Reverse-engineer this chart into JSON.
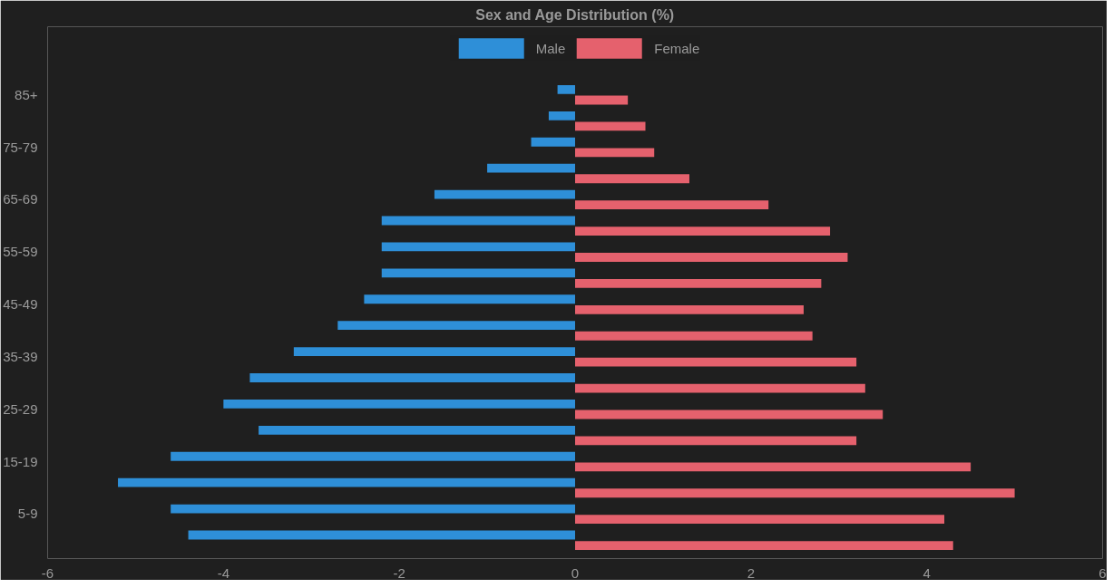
{
  "chart_data": {
    "type": "bar",
    "orientation": "horizontal",
    "title": "Sex and Age Distribution (%)",
    "categories": [
      "85+",
      null,
      "75-79",
      null,
      "65-69",
      null,
      "55-59",
      null,
      "45-49",
      null,
      "35-39",
      null,
      "25-29",
      null,
      "15-19",
      null,
      "5-9",
      null
    ],
    "series": [
      {
        "name": "Male",
        "color": "#2e8fd8",
        "values": [
          -0.2,
          -0.3,
          -0.5,
          -1.0,
          -1.6,
          -2.2,
          -2.2,
          -2.2,
          -2.4,
          -2.7,
          -3.2,
          -3.7,
          -4.0,
          -3.6,
          -4.6,
          -5.2,
          -4.6,
          -4.4
        ]
      },
      {
        "name": "Female",
        "color": "#e5616d",
        "values": [
          0.6,
          0.8,
          0.9,
          1.3,
          2.2,
          2.9,
          3.1,
          2.8,
          2.6,
          2.7,
          3.2,
          3.3,
          3.5,
          3.2,
          4.5,
          5.0,
          4.2,
          4.3
        ]
      }
    ],
    "xlim": [
      -6,
      6
    ],
    "xticks": [
      -6,
      -4,
      -2,
      0,
      2,
      4,
      6
    ],
    "grid": false,
    "legend": "top"
  }
}
